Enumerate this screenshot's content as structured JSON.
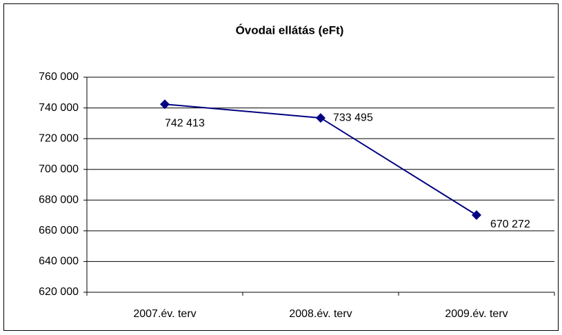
{
  "chart_data": {
    "type": "line",
    "title": "Óvodai ellátás (eFt)",
    "categories": [
      "2007.év. terv",
      "2008.év. terv",
      "2009.év. terv"
    ],
    "series": [
      {
        "name": "Óvodai ellátás (eFt)",
        "color": "#000080",
        "values": [
          742413,
          733495,
          670272
        ],
        "value_labels": [
          "742 413",
          "733 495",
          "670 272"
        ]
      }
    ],
    "ylim": [
      620000,
      760000
    ],
    "yticks": [
      {
        "value": 620000,
        "label": "620 000"
      },
      {
        "value": 640000,
        "label": "640 000"
      },
      {
        "value": 660000,
        "label": "660 000"
      },
      {
        "value": 680000,
        "label": "680 000"
      },
      {
        "value": 700000,
        "label": "700 000"
      },
      {
        "value": 720000,
        "label": "720 000"
      },
      {
        "value": 740000,
        "label": "740 000"
      },
      {
        "value": 760000,
        "label": "760 000"
      }
    ],
    "grid": true
  }
}
